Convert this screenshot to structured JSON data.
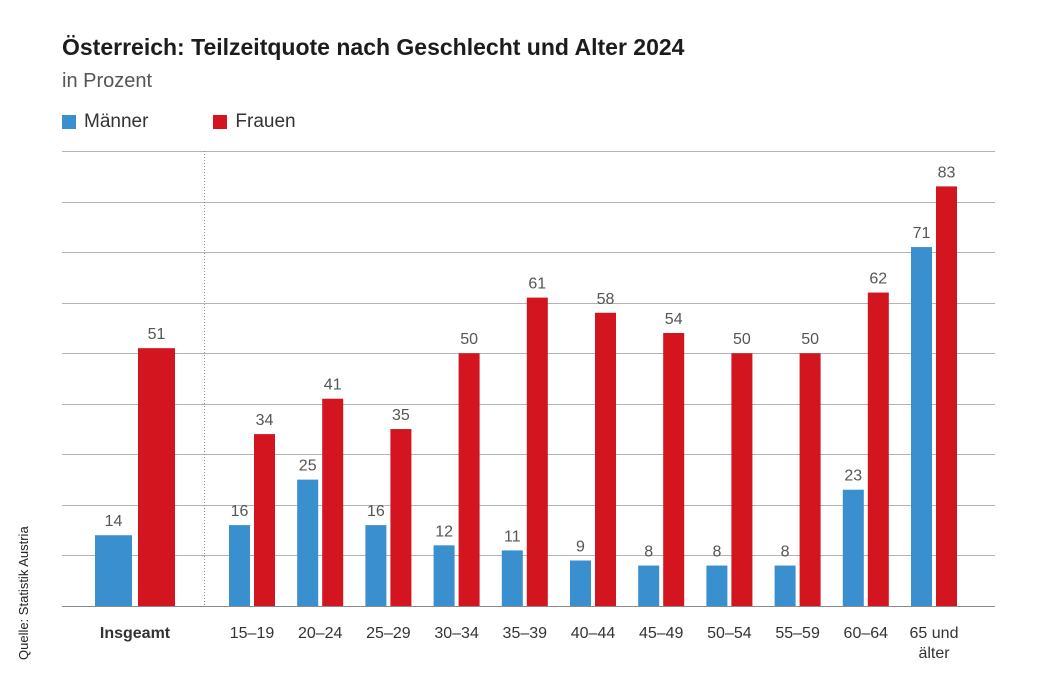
{
  "chart_data": {
    "type": "bar",
    "title": "Österreich: Teilzeitquote nach Geschlecht und Alter 2024",
    "subtitle": "in Prozent",
    "source": "Quelle: Statistik Austria",
    "categories": [
      "Insgeamt",
      "15–19",
      "20–24",
      "25–29",
      "30–34",
      "35–39",
      "40–44",
      "45–49",
      "50–54",
      "55–59",
      "60–64",
      "65 und älter"
    ],
    "series": [
      {
        "name": "Männer",
        "color": "#3a8fcf",
        "values": [
          14,
          16,
          25,
          16,
          12,
          11,
          9,
          8,
          8,
          8,
          23,
          71
        ]
      },
      {
        "name": "Frauen",
        "color": "#d2151e",
        "values": [
          51,
          34,
          41,
          35,
          50,
          61,
          58,
          54,
          50,
          50,
          62,
          83
        ]
      }
    ],
    "ylim": [
      0,
      90
    ],
    "grid": true,
    "xlabel": "",
    "ylabel": ""
  }
}
